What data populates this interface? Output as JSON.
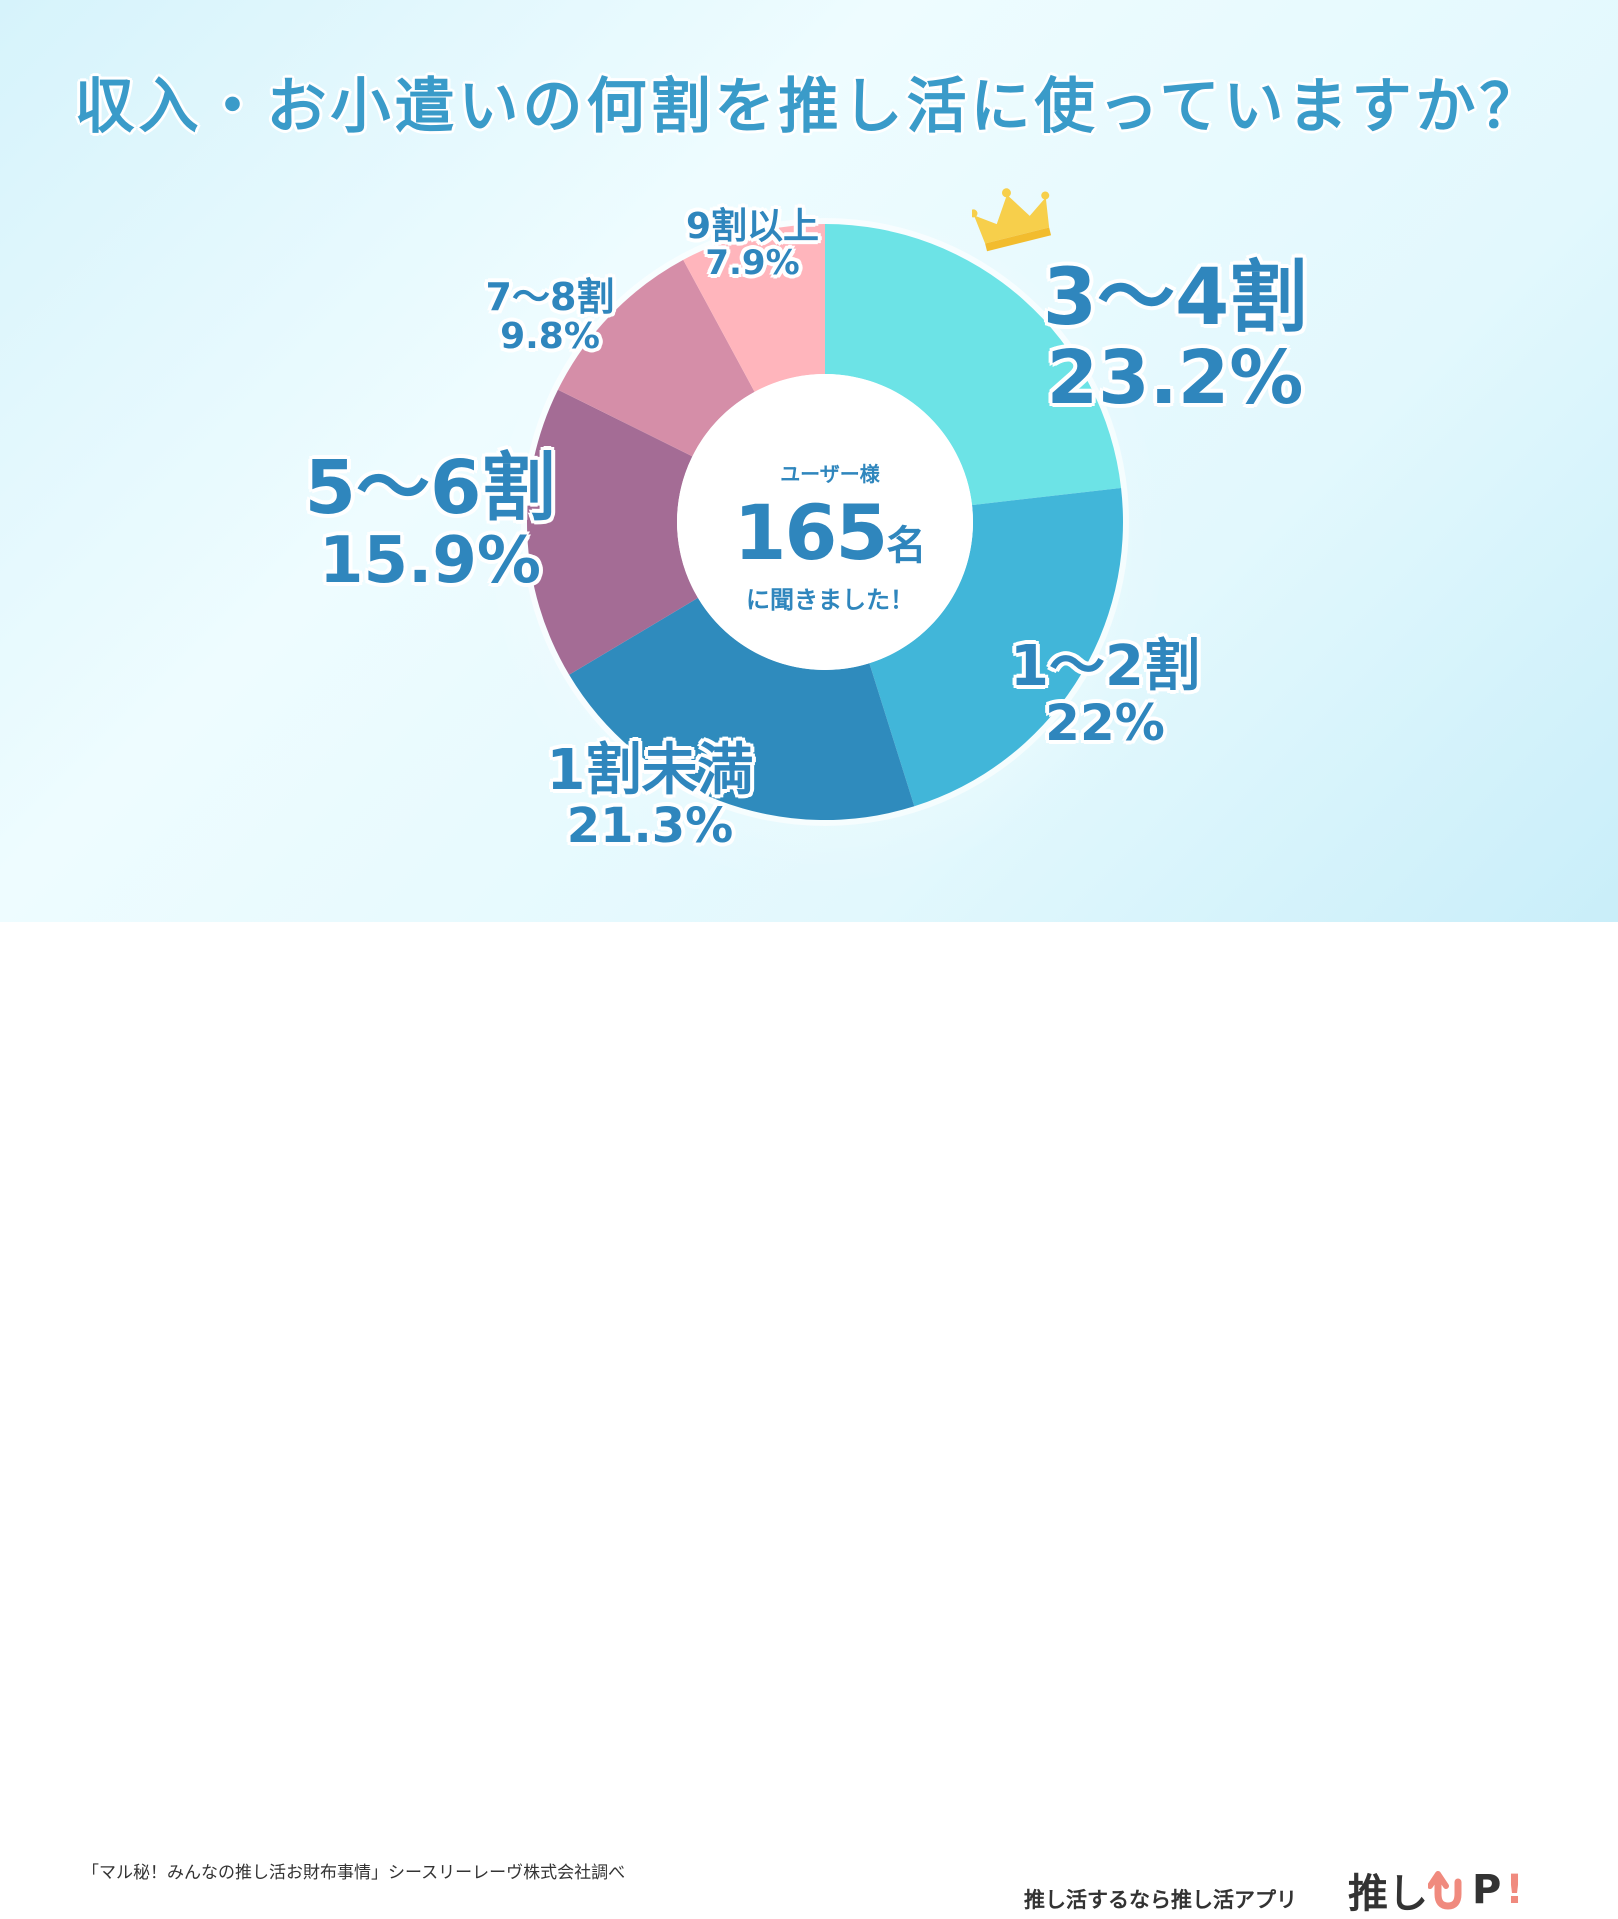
{
  "title": "収入・お小遣いの何割を推し活に使っていますか？",
  "center": {
    "top": "ユーザー様",
    "number": "165",
    "unit": "名",
    "bottom": "に聞きました！"
  },
  "chart_data": {
    "type": "pie",
    "title": "収入・お小遣いの何割を推し活に使っていますか？",
    "total_respondents": 165,
    "slices": [
      {
        "label": "3〜4割",
        "value_label": "23.2%",
        "value": 23.2,
        "color": "#6ce3e6"
      },
      {
        "label": "1〜2割",
        "value_label": "22%",
        "value": 22.0,
        "color": "#41b6d9"
      },
      {
        "label": "1割未満",
        "value_label": "21.3%",
        "value": 21.3,
        "color": "#2f8bbd"
      },
      {
        "label": "5〜6割",
        "value_label": "15.9%",
        "value": 15.9,
        "color": "#a46c95"
      },
      {
        "label": "7〜8割",
        "value_label": "9.8%",
        "value": 9.8,
        "color": "#d58ea8"
      },
      {
        "label": "9割以上",
        "value_label": "7.9%",
        "value": 7.9,
        "color": "#ffb5bc"
      }
    ]
  },
  "footer": {
    "source": "「マル秘！みんなの推し活お財布事情」シースリーレーヴ株式会社調べ",
    "tagline": "推し活するなら推し活アプリ",
    "brand_text": "推し",
    "brand_letter": "P",
    "brand_mark": "!",
    "brand_arrow_color": "#f08a7e",
    "brand_arrow_icon": "up-arrow-icon"
  }
}
